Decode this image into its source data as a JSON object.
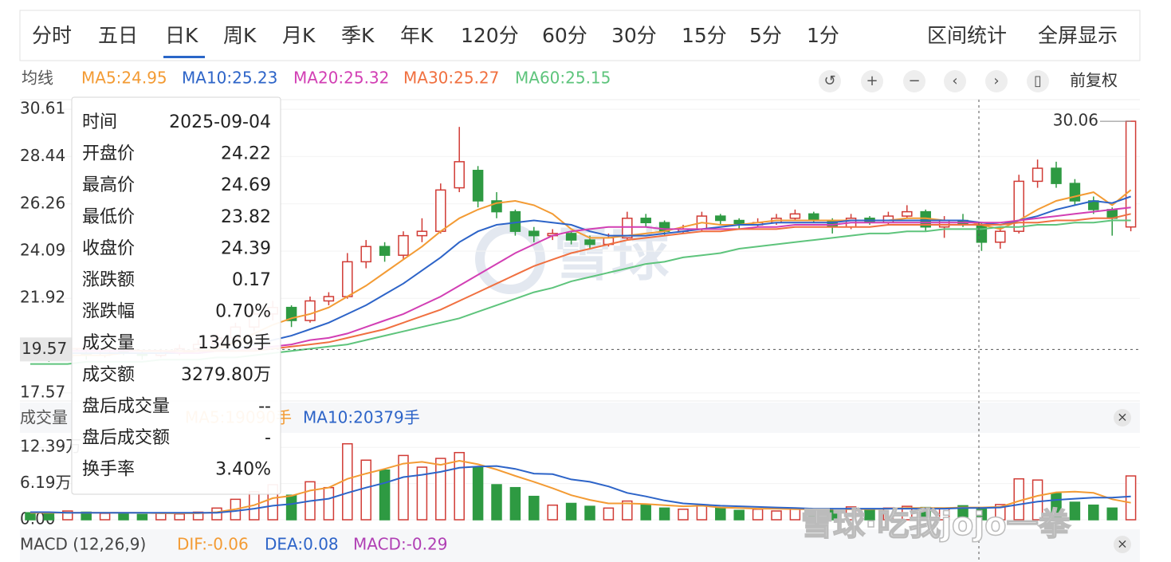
{
  "ui": {
    "tabs": [
      "分时",
      "五日",
      "日K",
      "周K",
      "月K",
      "季K",
      "年K",
      "120分",
      "60分",
      "30分",
      "15分",
      "5分",
      "1分"
    ],
    "active_tab": 2,
    "actions": [
      "区间统计",
      "全屏显示"
    ],
    "ma_label": "均线",
    "adjust": "前复权",
    "volume_label": "成交量",
    "volume_legend": [
      {
        "text": "MA5:19090手",
        "color": "#f39b34"
      },
      {
        "text": "MA10:20379手",
        "color": "#2d64c8"
      }
    ],
    "macd_label": "MACD (12,26,9)",
    "macd_legend": [
      {
        "text": "DIF:-0.06",
        "color": "#f39b34"
      },
      {
        "text": "DEA:0.08",
        "color": "#2d64c8"
      },
      {
        "text": "MACD:-0.29",
        "color": "#b03fb4"
      }
    ],
    "watermark": "雪球",
    "watermark2": "雪球·吃我jojo一拳",
    "tooltip": [
      {
        "label": "时间",
        "value": "2025-09-04",
        "color": "#222"
      },
      {
        "label": "开盘价",
        "value": "24.22",
        "color": "#222"
      },
      {
        "label": "最高价",
        "value": "24.69",
        "color": "#d13b35"
      },
      {
        "label": "最低价",
        "value": "23.82",
        "color": "#2e9a42"
      },
      {
        "label": "收盘价",
        "value": "24.39",
        "color": "#d13b35"
      },
      {
        "label": "涨跌额",
        "value": "0.17",
        "color": "#d13b35"
      },
      {
        "label": "涨跌幅",
        "value": "0.70%",
        "color": "#d13b35"
      },
      {
        "label": "成交量",
        "value": "13469手",
        "color": "#222"
      },
      {
        "label": "成交额",
        "value": "3279.80万",
        "color": "#222"
      },
      {
        "label": "盘后成交量",
        "value": "--",
        "color": "#222"
      },
      {
        "label": "盘后成交额",
        "value": "-",
        "color": "#222"
      },
      {
        "label": "换手率",
        "value": "3.40%",
        "color": "#222"
      }
    ]
  },
  "chart_data": [
    {
      "type": "candlestick",
      "up_color": "#d13b35",
      "down_color": "#2e9a42",
      "ylim": [
        17.2,
        30.98
      ],
      "yticks": [
        30.61,
        28.44,
        26.26,
        24.09,
        21.92,
        17.57
      ],
      "crosshair_value": 19.57,
      "ohlc": [
        [
          19.4,
          19.6,
          19.1,
          19.3
        ],
        [
          19.3,
          19.5,
          19.0,
          19.2
        ],
        [
          19.2,
          19.6,
          19.1,
          19.4
        ],
        [
          19.4,
          19.5,
          19.1,
          19.3
        ],
        [
          19.3,
          19.7,
          19.2,
          19.5
        ],
        [
          19.5,
          19.7,
          19.3,
          19.4
        ],
        [
          19.4,
          19.5,
          19.1,
          19.3
        ],
        [
          19.3,
          19.6,
          19.2,
          19.4
        ],
        [
          19.4,
          19.8,
          19.3,
          19.6
        ],
        [
          19.6,
          20.0,
          19.5,
          19.8
        ],
        [
          19.8,
          20.3,
          19.7,
          20.1
        ],
        [
          20.1,
          20.8,
          20.0,
          20.6
        ],
        [
          20.6,
          21.5,
          20.4,
          21.2
        ],
        [
          21.2,
          21.8,
          20.9,
          21.5
        ],
        [
          21.5,
          21.6,
          20.6,
          20.9
        ],
        [
          20.9,
          22.0,
          20.8,
          21.8
        ],
        [
          21.8,
          22.2,
          21.6,
          22.0
        ],
        [
          22.0,
          24.0,
          21.9,
          23.6
        ],
        [
          23.6,
          24.6,
          23.3,
          24.3
        ],
        [
          24.3,
          24.5,
          23.6,
          23.9
        ],
        [
          23.9,
          25.0,
          23.7,
          24.8
        ],
        [
          24.8,
          25.6,
          24.5,
          25.0
        ],
        [
          25.0,
          27.2,
          24.9,
          26.9
        ],
        [
          27.0,
          29.8,
          26.8,
          28.2
        ],
        [
          27.8,
          28.0,
          26.1,
          26.4
        ],
        [
          26.4,
          26.8,
          25.6,
          25.9
        ],
        [
          25.9,
          26.0,
          24.8,
          25.0
        ],
        [
          25.0,
          25.2,
          24.5,
          24.8
        ],
        [
          24.8,
          25.1,
          24.6,
          24.9
        ],
        [
          24.9,
          25.0,
          24.4,
          24.6
        ],
        [
          24.6,
          24.8,
          24.2,
          24.4
        ],
        [
          24.4,
          24.9,
          24.3,
          24.7
        ],
        [
          24.7,
          25.9,
          24.6,
          25.6
        ],
        [
          25.6,
          25.8,
          25.2,
          25.4
        ],
        [
          25.4,
          25.5,
          24.8,
          25.0
        ],
        [
          25.0,
          25.3,
          24.9,
          25.1
        ],
        [
          25.1,
          25.9,
          25.0,
          25.7
        ],
        [
          25.7,
          25.8,
          25.3,
          25.5
        ],
        [
          25.5,
          25.6,
          25.1,
          25.3
        ],
        [
          25.3,
          25.6,
          25.2,
          25.4
        ],
        [
          25.4,
          25.8,
          25.3,
          25.6
        ],
        [
          25.6,
          26.0,
          25.5,
          25.8
        ],
        [
          25.8,
          25.9,
          25.4,
          25.5
        ],
        [
          25.5,
          25.6,
          24.9,
          25.2
        ],
        [
          25.2,
          25.8,
          25.1,
          25.6
        ],
        [
          25.6,
          25.7,
          25.3,
          25.4
        ],
        [
          25.4,
          25.9,
          25.3,
          25.7
        ],
        [
          25.7,
          26.2,
          25.6,
          25.9
        ],
        [
          25.9,
          26.0,
          25.0,
          25.2
        ],
        [
          25.2,
          25.7,
          24.7,
          25.5
        ],
        [
          25.5,
          25.8,
          25.2,
          25.3
        ],
        [
          25.3,
          25.4,
          24.1,
          24.5
        ],
        [
          24.5,
          25.2,
          24.2,
          25.0
        ],
        [
          25.0,
          27.6,
          24.9,
          27.3
        ],
        [
          27.3,
          28.3,
          27.0,
          27.9
        ],
        [
          27.9,
          28.2,
          27.0,
          27.2
        ],
        [
          27.2,
          27.4,
          26.2,
          26.4
        ],
        [
          26.4,
          26.6,
          25.8,
          26.0
        ],
        [
          26.0,
          26.1,
          24.8,
          25.6
        ],
        [
          25.2,
          30.06,
          25.0,
          30.06
        ]
      ],
      "series": [
        {
          "name": "MA5:24.95",
          "color": "#f39b34",
          "values": [
            19.4,
            19.3,
            19.3,
            19.3,
            19.3,
            19.4,
            19.4,
            19.4,
            19.4,
            19.5,
            19.6,
            19.9,
            20.3,
            20.7,
            21.0,
            21.2,
            21.5,
            22.0,
            22.5,
            23.1,
            23.7,
            24.3,
            25.0,
            25.6,
            26.0,
            26.3,
            26.4,
            26.2,
            25.8,
            25.1,
            24.7,
            24.7,
            24.8,
            24.9,
            25.0,
            25.2,
            25.4,
            25.3,
            25.3,
            25.4,
            25.5,
            25.5,
            25.5,
            25.5,
            25.5,
            25.5,
            25.5,
            25.6,
            25.6,
            25.5,
            25.5,
            25.3,
            25.1,
            25.5,
            26.0,
            26.4,
            26.6,
            26.8,
            26.2,
            26.9
          ]
        },
        {
          "name": "MA10:25.23",
          "color": "#2d64c8",
          "values": [
            19.5,
            19.5,
            19.4,
            19.4,
            19.4,
            19.4,
            19.4,
            19.4,
            19.4,
            19.4,
            19.5,
            19.6,
            19.8,
            20.0,
            20.2,
            20.5,
            20.8,
            21.2,
            21.6,
            22.1,
            22.6,
            23.2,
            23.8,
            24.5,
            25.0,
            25.3,
            25.4,
            25.5,
            25.4,
            25.3,
            25.0,
            24.8,
            24.8,
            24.8,
            24.9,
            25.0,
            25.1,
            25.2,
            25.3,
            25.3,
            25.4,
            25.4,
            25.4,
            25.4,
            25.5,
            25.5,
            25.5,
            25.5,
            25.5,
            25.5,
            25.5,
            25.4,
            25.3,
            25.5,
            25.7,
            26.0,
            26.2,
            26.4,
            26.3,
            26.6
          ]
        },
        {
          "name": "MA20:25.32",
          "color": "#d23fb4",
          "values": [
            19.6,
            19.6,
            19.5,
            19.5,
            19.5,
            19.5,
            19.5,
            19.5,
            19.4,
            19.4,
            19.5,
            19.5,
            19.6,
            19.7,
            19.8,
            20.0,
            20.1,
            20.3,
            20.6,
            20.9,
            21.2,
            21.6,
            22.0,
            22.5,
            23.0,
            23.5,
            24.0,
            24.4,
            24.8,
            25.0,
            25.1,
            25.2,
            25.2,
            25.2,
            25.1,
            25.1,
            25.1,
            25.1,
            25.1,
            25.2,
            25.2,
            25.3,
            25.3,
            25.3,
            25.4,
            25.4,
            25.4,
            25.4,
            25.4,
            25.4,
            25.4,
            25.4,
            25.4,
            25.5,
            25.6,
            25.7,
            25.8,
            25.9,
            26.0,
            26.1
          ]
        },
        {
          "name": "MA30:25.27",
          "color": "#f07040",
          "values": [
            19.7,
            19.7,
            19.6,
            19.6,
            19.6,
            19.6,
            19.5,
            19.5,
            19.5,
            19.5,
            19.5,
            19.5,
            19.5,
            19.6,
            19.7,
            19.8,
            19.9,
            20.1,
            20.3,
            20.5,
            20.8,
            21.1,
            21.4,
            21.8,
            22.2,
            22.6,
            23.0,
            23.4,
            23.7,
            24.0,
            24.2,
            24.4,
            24.6,
            24.7,
            24.8,
            24.9,
            25.0,
            25.0,
            25.1,
            25.1,
            25.1,
            25.2,
            25.2,
            25.2,
            25.2,
            25.2,
            25.3,
            25.3,
            25.3,
            25.3,
            25.3,
            25.3,
            25.3,
            25.4,
            25.4,
            25.5,
            25.5,
            25.6,
            25.6,
            25.8
          ]
        },
        {
          "name": "MA60:25.15",
          "color": "#5ec47c",
          "values": [
            18.9,
            18.9,
            18.9,
            19.0,
            19.0,
            19.0,
            19.0,
            19.1,
            19.1,
            19.1,
            19.2,
            19.2,
            19.3,
            19.4,
            19.5,
            19.6,
            19.7,
            19.8,
            20.0,
            20.2,
            20.4,
            20.6,
            20.8,
            21.0,
            21.3,
            21.6,
            21.9,
            22.2,
            22.4,
            22.7,
            22.9,
            23.1,
            23.3,
            23.5,
            23.6,
            23.8,
            23.9,
            24.0,
            24.2,
            24.3,
            24.4,
            24.5,
            24.6,
            24.7,
            24.8,
            24.9,
            24.9,
            25.0,
            25.0,
            25.1,
            25.1,
            25.1,
            25.2,
            25.2,
            25.3,
            25.3,
            25.4,
            25.4,
            25.5,
            25.5
          ]
        }
      ]
    },
    {
      "type": "bar",
      "ylim": [
        0,
        14.6
      ],
      "yticks": [
        {
          "value": 0,
          "label": "0.00"
        },
        {
          "value": 6.19,
          "label": "6.19万"
        },
        {
          "value": 12.39,
          "label": "12.39万"
        }
      ],
      "values": [
        1.2,
        1.0,
        1.5,
        1.3,
        1.1,
        1.0,
        0.9,
        1.2,
        1.0,
        1.3,
        2.0,
        3.5,
        4.8,
        6.0,
        4.2,
        6.5,
        5.5,
        13.0,
        10.2,
        8.5,
        11.0,
        9.0,
        10.5,
        11.5,
        9.0,
        6.0,
        5.5,
        4.0,
        2.5,
        2.8,
        2.3,
        2.0,
        3.2,
        2.5,
        2.0,
        1.8,
        2.4,
        2.0,
        1.6,
        1.8,
        1.5,
        2.0,
        1.7,
        1.8,
        2.2,
        1.6,
        2.0,
        2.3,
        2.1,
        2.0,
        2.4,
        1.8,
        2.6,
        7.0,
        6.8,
        4.5,
        3.0,
        2.5,
        2.0,
        7.5
      ],
      "series": [
        {
          "color": "#f39b34",
          "values": [
            1.2,
            1.2,
            1.2,
            1.2,
            1.2,
            1.2,
            1.2,
            1.1,
            1.1,
            1.1,
            1.3,
            1.8,
            2.5,
            3.7,
            4.1,
            5.0,
            5.5,
            7.0,
            7.9,
            8.7,
            9.6,
            9.9,
            9.4,
            10.1,
            9.5,
            8.6,
            7.5,
            6.5,
            5.4,
            4.2,
            3.4,
            2.8,
            2.8,
            2.7,
            2.5,
            2.3,
            2.4,
            2.1,
            2.0,
            1.9,
            1.9,
            1.8,
            1.8,
            1.8,
            1.8,
            1.8,
            1.9,
            2.0,
            2.0,
            2.0,
            2.1,
            2.1,
            2.2,
            3.2,
            4.1,
            4.7,
            4.8,
            4.6,
            3.5,
            2.9
          ]
        },
        {
          "color": "#2d64c8",
          "values": [
            1.3,
            1.3,
            1.2,
            1.2,
            1.2,
            1.2,
            1.2,
            1.2,
            1.2,
            1.2,
            1.2,
            1.5,
            1.9,
            2.4,
            2.7,
            3.2,
            3.6,
            4.6,
            5.5,
            6.3,
            7.3,
            7.7,
            8.2,
            8.9,
            9.1,
            9.2,
            8.7,
            7.9,
            7.8,
            6.9,
            6.5,
            5.7,
            4.6,
            4.0,
            3.3,
            2.8,
            2.6,
            2.4,
            2.3,
            2.2,
            2.1,
            2.0,
            1.9,
            1.9,
            1.9,
            1.9,
            1.9,
            1.9,
            1.9,
            1.9,
            2.0,
            2.0,
            2.1,
            2.6,
            3.1,
            3.4,
            3.6,
            3.8,
            3.8,
            4.0
          ]
        }
      ]
    }
  ]
}
